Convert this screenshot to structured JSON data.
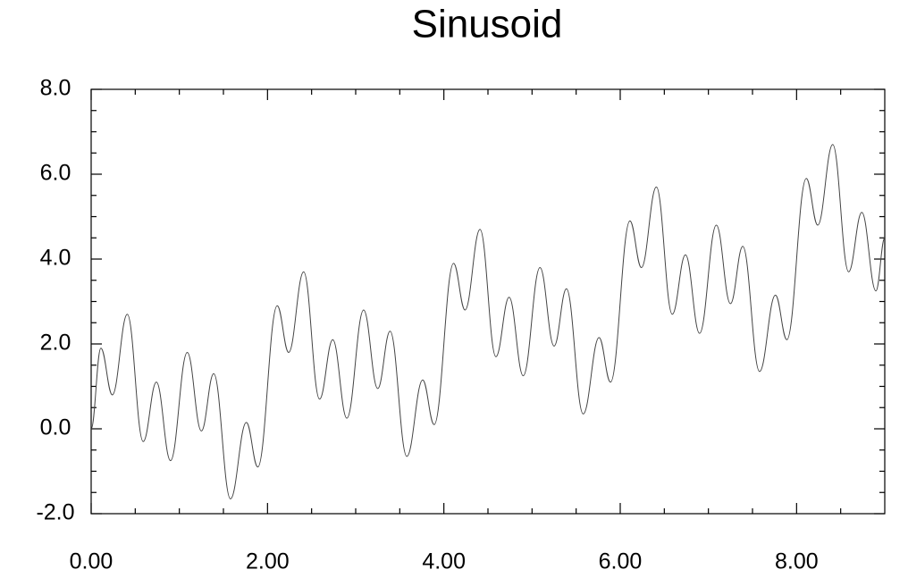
{
  "chart_data": {
    "type": "line",
    "title": "Sinusoid",
    "x": [
      0,
      0.11,
      0.24,
      0.41,
      0.59,
      0.74,
      0.9,
      1.09,
      1.25,
      1.39,
      1.58,
      1.76,
      1.89,
      2.11,
      2.24,
      2.41,
      2.59,
      2.74,
      2.9,
      3.09,
      3.25,
      3.39,
      3.58,
      3.76,
      3.89,
      4.11,
      4.24,
      4.41,
      4.59,
      4.74,
      4.9,
      5.09,
      5.25,
      5.39,
      5.58,
      5.76,
      5.89,
      6.11,
      6.24,
      6.41,
      6.59,
      6.74,
      6.9,
      7.09,
      7.25,
      7.39,
      7.58,
      7.76,
      7.89,
      8.11,
      8.24,
      8.41,
      8.59,
      8.74,
      8.9,
      9
    ],
    "series": [
      {
        "color": "#444444",
        "values": [
          0,
          1.9,
          0.8,
          2.7,
          -0.3,
          1.1,
          -0.75,
          1.8,
          -0.05,
          1.3,
          -1.65,
          0.15,
          -0.9,
          2.9,
          1.8,
          3.7,
          0.7,
          2.1,
          0.25,
          2.8,
          0.95,
          2.3,
          -0.65,
          1.15,
          0.1,
          3.9,
          2.8,
          4.7,
          1.7,
          3.1,
          1.25,
          3.8,
          1.95,
          3.3,
          0.35,
          2.15,
          1.1,
          4.9,
          3.8,
          5.7,
          2.7,
          4.1,
          2.25,
          4.8,
          2.95,
          4.3,
          1.35,
          3.15,
          2.1,
          5.9,
          4.8,
          6.7,
          3.7,
          5.1,
          3.25,
          4.5
        ]
      }
    ],
    "xlim": [
      0,
      9
    ],
    "ylim": [
      -2,
      8
    ],
    "xticks": [
      {
        "value": 0,
        "label": "0.00"
      },
      {
        "value": 2,
        "label": "2.00"
      },
      {
        "value": 4,
        "label": "4.00"
      },
      {
        "value": 6,
        "label": "6.00"
      },
      {
        "value": 8,
        "label": "8.00"
      }
    ],
    "yticks": [
      {
        "value": -2,
        "label": "-2.0"
      },
      {
        "value": 0,
        "label": "0.0"
      },
      {
        "value": 2,
        "label": "2.0"
      },
      {
        "value": 4,
        "label": "4.0"
      },
      {
        "value": 6,
        "label": "6.0"
      },
      {
        "value": 8,
        "label": "8.0"
      }
    ],
    "xminorticks": [
      0.5,
      1,
      1.5,
      2.5,
      3,
      3.5,
      4.5,
      5,
      5.5,
      6.5,
      7,
      7.5,
      8.5
    ],
    "yminorticks": [
      -1.5,
      -1,
      -0.5,
      0.5,
      1,
      1.5,
      2.5,
      3,
      3.5,
      4.5,
      5,
      5.5,
      6.5,
      7,
      7.5
    ],
    "grid": false
  }
}
